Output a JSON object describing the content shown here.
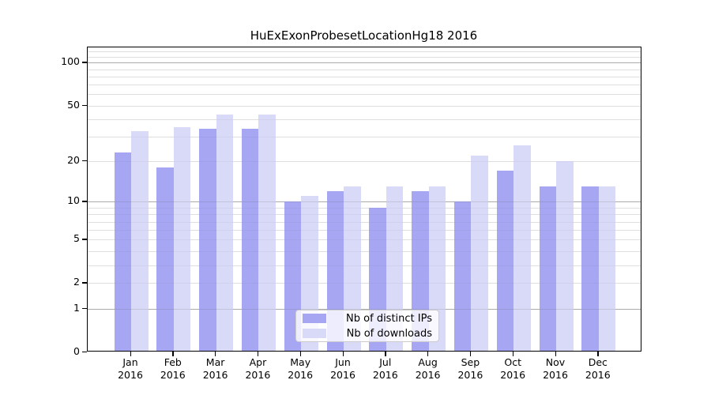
{
  "chart_data": {
    "type": "bar",
    "title": "HuExExonProbesetLocationHg18 2016",
    "categories": [
      "Jan",
      "Feb",
      "Mar",
      "Apr",
      "May",
      "Jun",
      "Jul",
      "Aug",
      "Sep",
      "Oct",
      "Nov",
      "Dec"
    ],
    "year": "2016",
    "series": [
      {
        "name": "Nb of distinct IPs",
        "color": "#a6a6f3",
        "values": [
          23,
          18,
          34,
          34,
          10,
          12,
          9,
          12,
          10,
          17,
          13,
          13
        ]
      },
      {
        "name": "Nb of downloads",
        "color": "#d9d9f8",
        "values": [
          33,
          35,
          43,
          43,
          11,
          13,
          13,
          13,
          22,
          26,
          20,
          13
        ]
      }
    ],
    "xlabel": "",
    "ylabel": "",
    "y_scale": "log1p",
    "y_ticks": [
      0,
      1,
      2,
      5,
      10,
      20,
      50,
      100
    ],
    "ylim": [
      0,
      127
    ],
    "grid": "on",
    "major_gridlines": [
      1,
      10,
      100
    ],
    "minor_gridlines": [
      2,
      3,
      4,
      5,
      6,
      7,
      8,
      9,
      20,
      30,
      40,
      50,
      60,
      70,
      80,
      90,
      110,
      120
    ],
    "legend_position": "lower center"
  }
}
